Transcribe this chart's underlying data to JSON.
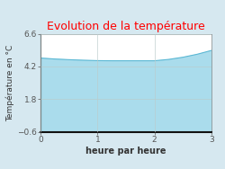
{
  "title": "Evolution de la température",
  "title_color": "#ff0000",
  "xlabel": "heure par heure",
  "ylabel": "Température en °C",
  "background_color": "#d6e8f0",
  "plot_background": "#ffffff",
  "x": [
    0,
    0.25,
    0.5,
    0.75,
    1.0,
    1.25,
    1.5,
    1.75,
    2.0,
    2.25,
    2.5,
    2.75,
    3.0
  ],
  "y": [
    4.82,
    4.75,
    4.7,
    4.66,
    4.63,
    4.62,
    4.62,
    4.62,
    4.62,
    4.72,
    4.88,
    5.1,
    5.38
  ],
  "fill_color": "#aadcec",
  "line_color": "#5bb8d4",
  "xlim": [
    0,
    3
  ],
  "ylim": [
    -0.6,
    6.6
  ],
  "yticks": [
    -0.6,
    1.8,
    4.2,
    6.6
  ],
  "xticks": [
    0,
    1,
    2,
    3
  ],
  "grid_color": "#bbcccc",
  "tick_label_color": "#555555",
  "axis_label_color": "#333333",
  "title_fontsize": 9,
  "label_fontsize": 7,
  "tick_fontsize": 6.5
}
